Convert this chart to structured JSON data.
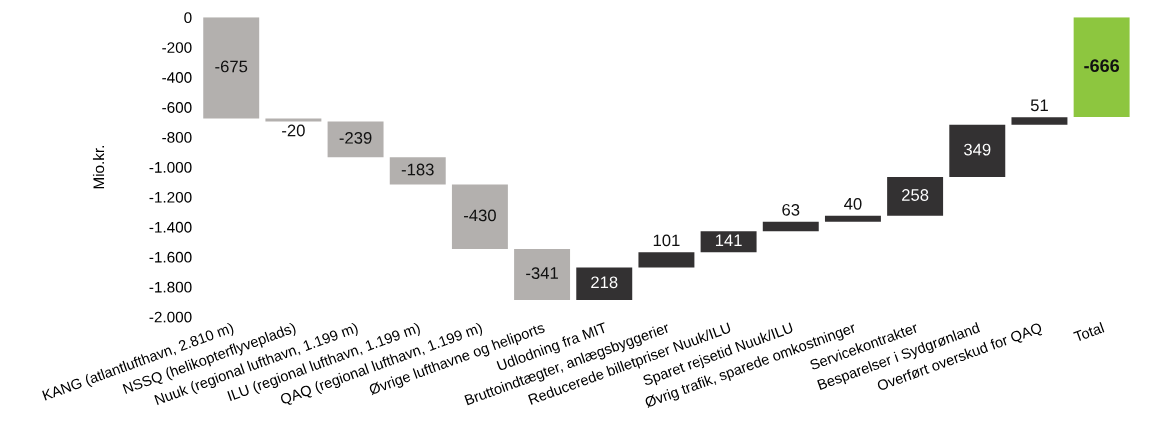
{
  "chart_data": {
    "type": "bar",
    "ylabel": "Mio.kr.",
    "categories": [
      "KANG (atlantlufthavn, 2.810 m)",
      "NSSQ (helikopterflyveplads)",
      "Nuuk (regional lufthavn, 1.199 m)",
      "ILU (regional lufthavn, 1.199 m)",
      "QAQ (regional lufthavn, 1.199 m)",
      "Øvrige lufthavne og heliports",
      "Udlodning fra MIT",
      "Bruttoindtægter, anlægsbyggerier",
      "Reducerede billetpriser Nuuk/ILU",
      "Sparet rejsetid Nuuk/ILU",
      "Øvrig trafik, sparede omkostninger",
      "Servicekontrakter",
      "Besparelser i Sydgrønland",
      "Overført overskud for QAQ",
      "Total"
    ],
    "values": [
      -675,
      -20,
      -239,
      -183,
      -430,
      -341,
      218,
      101,
      141,
      63,
      40,
      258,
      349,
      51,
      -666
    ],
    "base": [
      0,
      -675,
      -695,
      -934,
      -1117,
      -1547,
      -1888,
      -1670,
      -1569,
      -1428,
      -1365,
      -1325,
      -1067,
      -718,
      0
    ],
    "colors": [
      "#b3b0ae",
      "#b3b0ae",
      "#b3b0ae",
      "#b3b0ae",
      "#b3b0ae",
      "#b3b0ae",
      "#333132",
      "#333132",
      "#333132",
      "#333132",
      "#333132",
      "#333132",
      "#333132",
      "#333132",
      "#8dc63f"
    ],
    "data_labels": true,
    "ylim": [
      -2000,
      0
    ],
    "yticks": [
      0,
      -200,
      -400,
      -600,
      -800,
      {
        "value": -1000,
        "label": "-1.000"
      },
      {
        "value": -1200,
        "label": "-1.200"
      },
      {
        "value": -1400,
        "label": "-1.400"
      },
      {
        "value": -1600,
        "label": "-1.600"
      },
      {
        "value": -1800,
        "label": "-1.800"
      },
      {
        "value": -2000,
        "label": "-2.000"
      }
    ],
    "grid": false
  }
}
